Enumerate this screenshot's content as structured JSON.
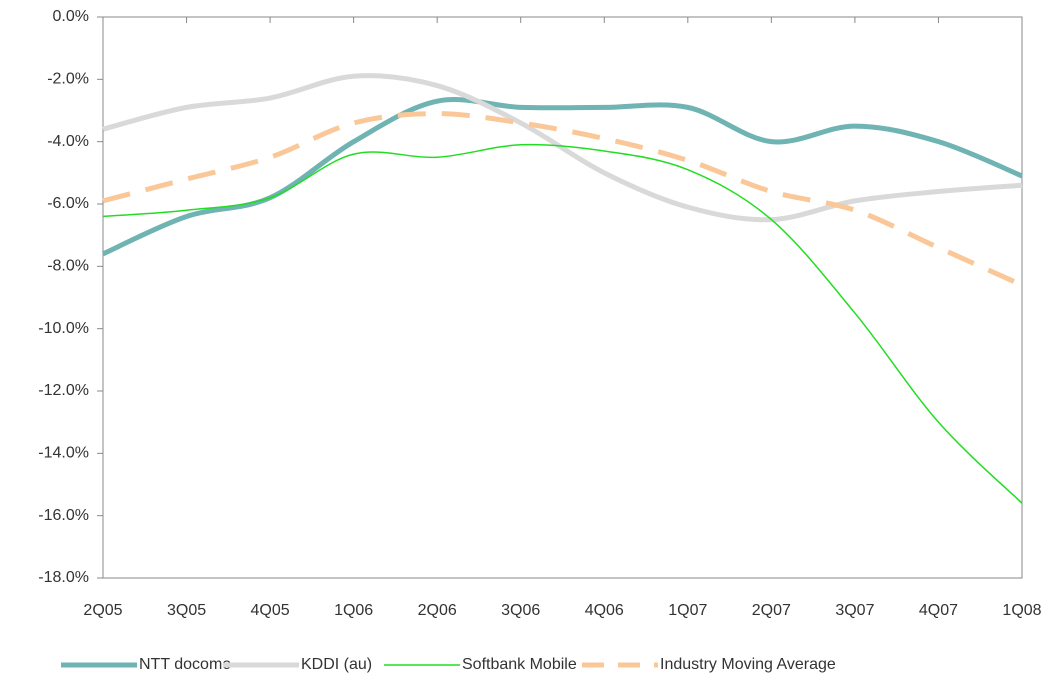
{
  "chart_data": {
    "type": "line",
    "categories": [
      "2Q05",
      "3Q05",
      "4Q05",
      "1Q06",
      "2Q06",
      "3Q06",
      "4Q06",
      "1Q07",
      "2Q07",
      "3Q07",
      "4Q07",
      "1Q08"
    ],
    "series": [
      {
        "name": "NTT docomo",
        "color": "#6fb3b3",
        "width": 5,
        "dash": null,
        "values": [
          -7.6,
          -6.4,
          -5.8,
          -4.0,
          -2.7,
          -2.9,
          -2.9,
          -2.9,
          -4.0,
          -3.5,
          -4.0,
          -5.1
        ]
      },
      {
        "name": "KDDI (au)",
        "color": "#d9d9d9",
        "width": 5,
        "dash": null,
        "values": [
          -3.6,
          -2.9,
          -2.6,
          -1.9,
          -2.2,
          -3.4,
          -5.0,
          -6.1,
          -6.5,
          -5.9,
          -5.6,
          -5.4
        ]
      },
      {
        "name": "Softbank Mobile",
        "color": "#22dd22",
        "width": 1.5,
        "dash": null,
        "values": [
          -6.4,
          -6.2,
          -5.8,
          -4.4,
          -4.5,
          -4.1,
          -4.3,
          -4.9,
          -6.5,
          -9.5,
          -13.0,
          -15.6
        ]
      },
      {
        "name": "Industry Moving Average",
        "color": "#fac898",
        "width": 5,
        "dash": "28 16",
        "values": [
          -5.9,
          -5.2,
          -4.5,
          -3.4,
          -3.1,
          -3.4,
          -3.9,
          -4.6,
          -5.6,
          -6.2,
          -7.4,
          -8.6
        ]
      }
    ],
    "ylim": [
      -18,
      0
    ],
    "yticks": [
      {
        "value": 0,
        "label": "0.0%"
      },
      {
        "value": -2,
        "label": "-2.0%"
      },
      {
        "value": -4,
        "label": "-4.0%"
      },
      {
        "value": -6,
        "label": "-6.0%"
      },
      {
        "value": -8,
        "label": "-8.0%"
      },
      {
        "value": -10,
        "label": "-10.0%"
      },
      {
        "value": -12,
        "label": "-12.0%"
      },
      {
        "value": -14,
        "label": "-14.0%"
      },
      {
        "value": -16,
        "label": "-16.0%"
      },
      {
        "value": -18,
        "label": "-18.0%"
      }
    ],
    "grid": false,
    "legend": "bottom"
  }
}
